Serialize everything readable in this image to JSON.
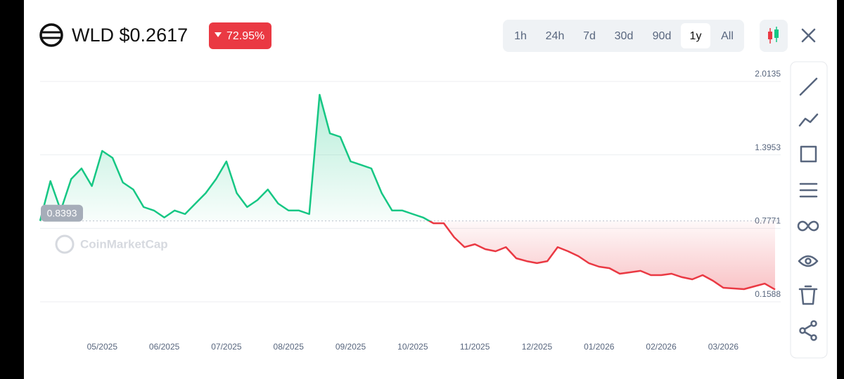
{
  "header": {
    "symbol": "WLD",
    "price": "$0.2617",
    "change": "72.95%"
  },
  "time_ranges": [
    "1h",
    "24h",
    "7d",
    "30d",
    "90d",
    "1y",
    "All"
  ],
  "selected_range": "1y",
  "watermark": "CoinMarketCap",
  "chart_data": {
    "type": "line",
    "categories": [
      null,
      null,
      null,
      null,
      null,
      null,
      "05/2025",
      null,
      null,
      null,
      null,
      null,
      "06/2025",
      null,
      null,
      null,
      null,
      null,
      "07/2025",
      null,
      null,
      null,
      null,
      null,
      "08/2025",
      null,
      null,
      null,
      null,
      null,
      "09/2025",
      null,
      null,
      null,
      null,
      null,
      "10/2025",
      null,
      null,
      null,
      null,
      null,
      "11/2025",
      null,
      null,
      null,
      null,
      null,
      "12/2025",
      null,
      null,
      null,
      null,
      null,
      "01/2026",
      null,
      null,
      null,
      null,
      null,
      "02/2026",
      null,
      null,
      null,
      null,
      null,
      "03/2026",
      null,
      null,
      null,
      null,
      null
    ],
    "series": [
      {
        "values": [
          0.84,
          1.175,
          0.927,
          1.192,
          1.281,
          1.133,
          1.429,
          1.37,
          1.163,
          1.104,
          0.956,
          0.927,
          0.868,
          0.927,
          0.897,
          0.986,
          1.074,
          1.192,
          1.34,
          1.074,
          0.956,
          1.015,
          1.104,
          0.986,
          0.927,
          0.927,
          0.897,
          1.901,
          1.576,
          1.547,
          1.34,
          1.311,
          1.281,
          1.074,
          0.927,
          0.927,
          0.897,
          0.868,
          0.82,
          0.82,
          0.702,
          0.619,
          0.643,
          0.602,
          0.584,
          0.619,
          0.525,
          0.501,
          0.484,
          0.501,
          0.619,
          0.584,
          0.543,
          0.484,
          0.454,
          0.442,
          0.395,
          0.407,
          0.419,
          0.383,
          0.383,
          0.395,
          0.366,
          0.348,
          0.383,
          0.336,
          0.277,
          0.271,
          0.265,
          0.289,
          0.312,
          0.2617
        ]
      }
    ],
    "baseline": 0.8393,
    "up_color": "#16c784",
    "down_color": "#ea3943",
    "ylim": [
      0.1588,
      2.0135
    ],
    "yticks": [
      0.1588,
      0.7771,
      1.3953,
      2.0135
    ],
    "grid": true
  }
}
